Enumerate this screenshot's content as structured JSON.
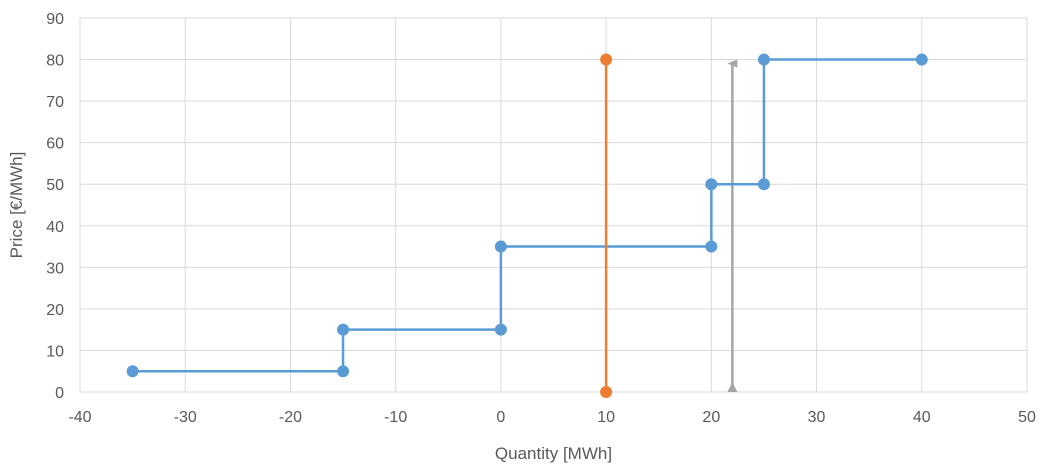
{
  "chart_data": {
    "type": "line",
    "title": "",
    "xlabel": "Quantity [MWh]",
    "ylabel": "Price [€/MWh]",
    "xlim": [
      -40,
      50
    ],
    "ylim": [
      0,
      90
    ],
    "xticks": [
      -40,
      -30,
      -20,
      -10,
      0,
      10,
      20,
      30,
      40,
      50
    ],
    "yticks": [
      0,
      10,
      20,
      30,
      40,
      50,
      60,
      70,
      80,
      90
    ],
    "grid": true,
    "legend": "none",
    "series": [
      {
        "style": "step-line",
        "color": "#5b9bd5",
        "points": [
          [
            -35,
            5
          ],
          [
            -15,
            5
          ],
          [
            -15,
            15
          ],
          [
            0,
            15
          ],
          [
            0,
            35
          ],
          [
            20,
            35
          ],
          [
            20,
            50
          ],
          [
            25,
            50
          ],
          [
            25,
            80
          ],
          [
            40,
            80
          ]
        ]
      },
      {
        "style": "vertical-line",
        "color": "#ed7d31",
        "points": [
          [
            10,
            0
          ],
          [
            10,
            80
          ]
        ]
      },
      {
        "style": "arrow",
        "color": "#a5a5a5",
        "points": [
          [
            22,
            0
          ],
          [
            22,
            80
          ]
        ]
      }
    ]
  }
}
